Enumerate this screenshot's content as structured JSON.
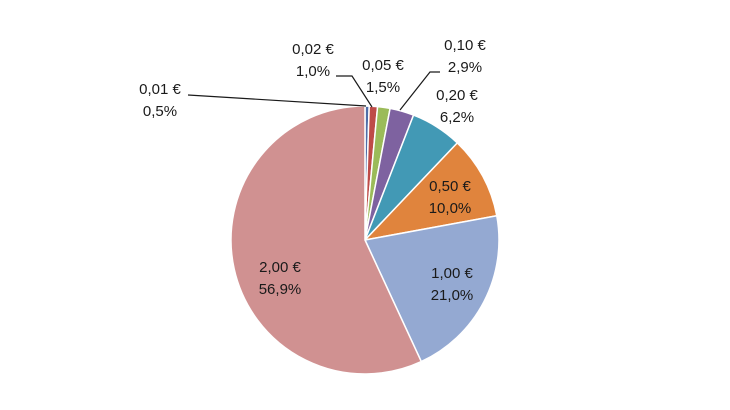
{
  "chart_data": {
    "type": "pie",
    "title": "",
    "start_angle_deg": 0,
    "direction": "clockwise",
    "legend": "none",
    "slices": [
      {
        "category": "0,01 €",
        "percent_label": "0,5%",
        "value": 0.5,
        "color": "#4f6ea8"
      },
      {
        "category": "0,02 €",
        "percent_label": "1,0%",
        "value": 1.0,
        "color": "#be4b48"
      },
      {
        "category": "0,05 €",
        "percent_label": "1,5%",
        "value": 1.5,
        "color": "#9bbb59"
      },
      {
        "category": "0,10 €",
        "percent_label": "2,9%",
        "value": 2.9,
        "color": "#7e62a0"
      },
      {
        "category": "0,20 €",
        "percent_label": "6,2%",
        "value": 6.2,
        "color": "#4299b5"
      },
      {
        "category": "0,50 €",
        "percent_label": "10,0%",
        "value": 10.0,
        "color": "#e0843d"
      },
      {
        "category": "1,00 €",
        "percent_label": "21,0%",
        "value": 21.0,
        "color": "#94a9d2"
      },
      {
        "category": "2,00 €",
        "percent_label": "56,9%",
        "value": 56.9,
        "color": "#d09191"
      }
    ]
  }
}
